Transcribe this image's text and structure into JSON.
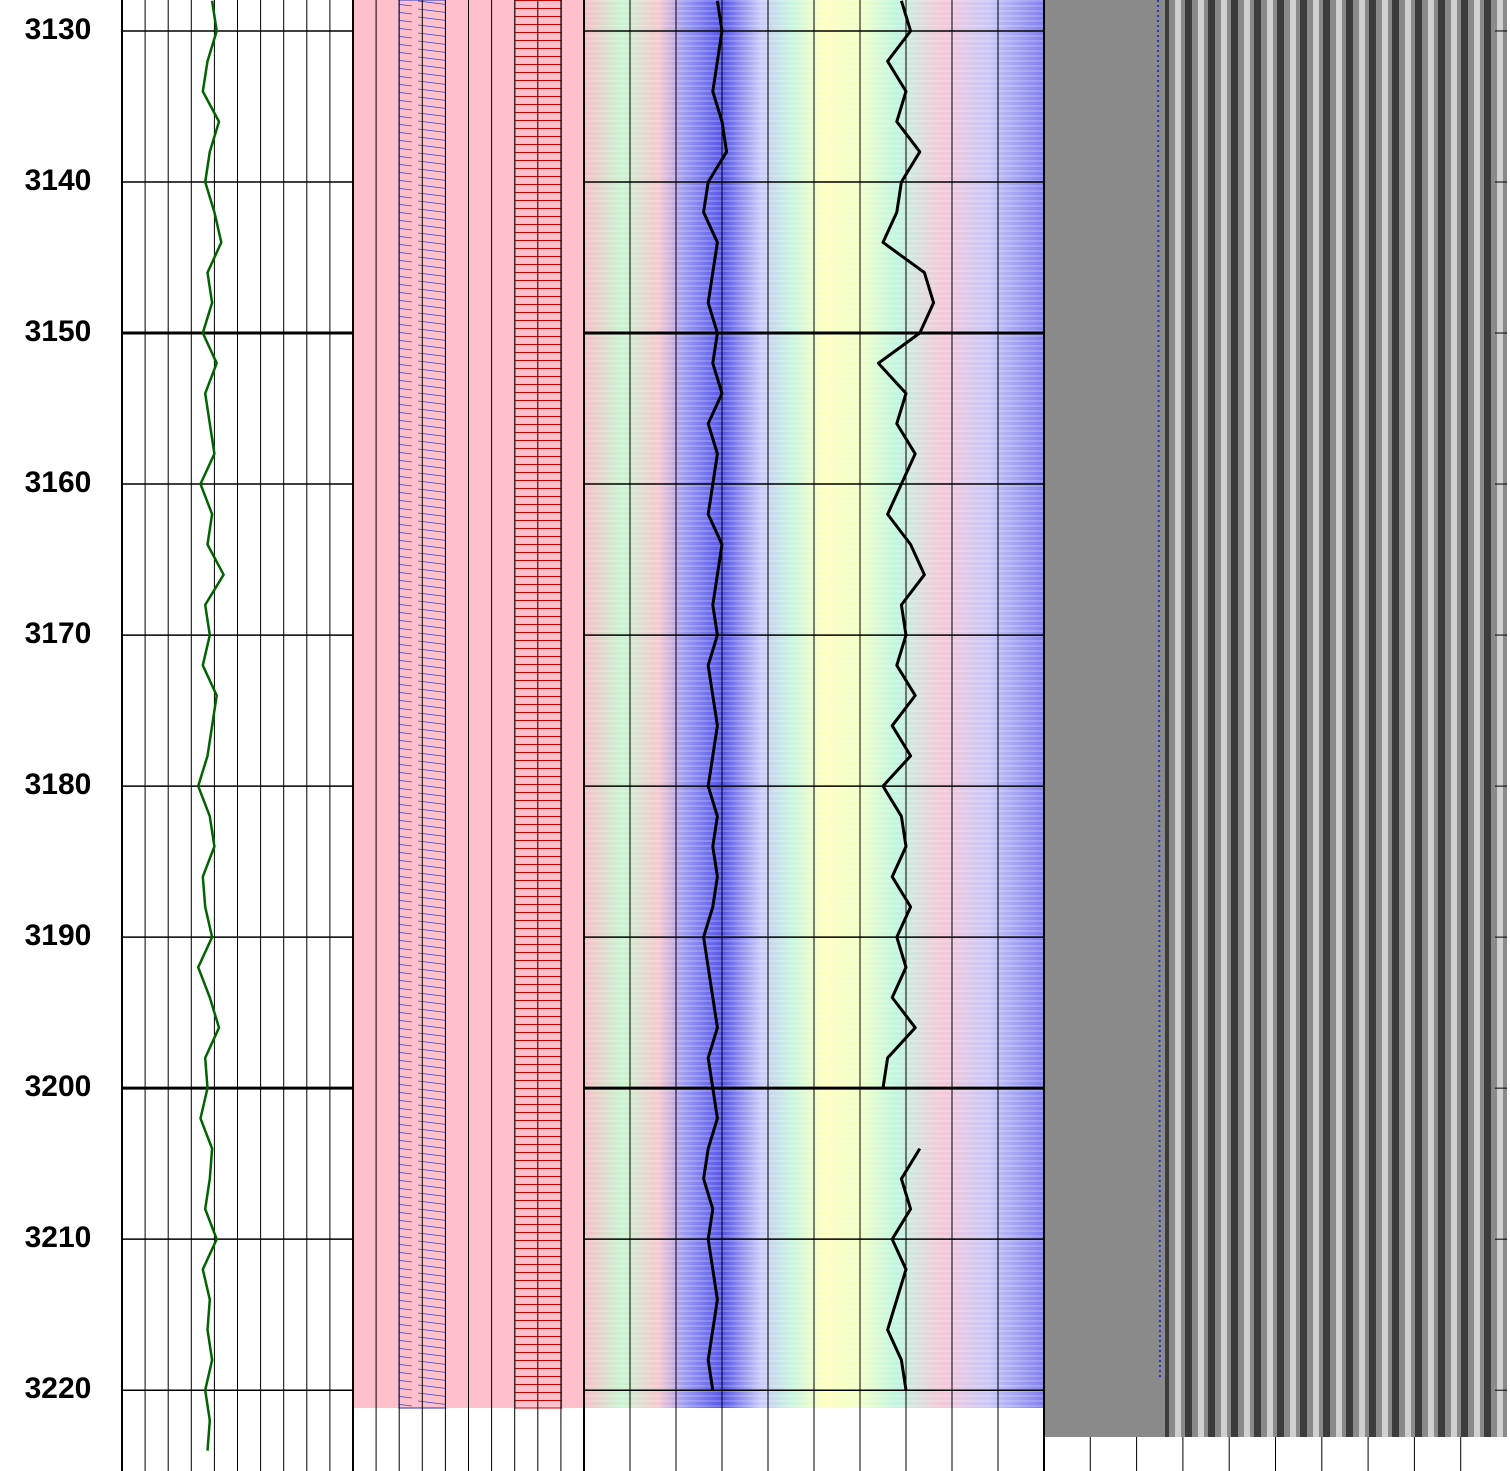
{
  "chart_data": {
    "type": "log",
    "ylim": [
      3127.95,
      3225.35
    ],
    "yticks": [
      3130,
      3140,
      3150,
      3160,
      3170,
      3180,
      3190,
      3200,
      3210,
      3220
    ],
    "grid": true,
    "depth": [
      3128,
      3130,
      3132,
      3134,
      3136,
      3138,
      3140,
      3142,
      3144,
      3146,
      3148,
      3150,
      3152,
      3154,
      3156,
      3158,
      3160,
      3162,
      3164,
      3166,
      3168,
      3170,
      3172,
      3174,
      3176,
      3178,
      3180,
      3182,
      3184,
      3186,
      3188,
      3190,
      3192,
      3194,
      3196,
      3198,
      3200,
      3202,
      3204,
      3206,
      3208,
      3210,
      3212,
      3214,
      3216,
      3218,
      3220,
      3222,
      3224
    ],
    "tracks": [
      {
        "xlim": [
          0,
          10
        ],
        "series": [
          {
            "color": "#006400",
            "values": [
              3.9,
              4.1,
              3.7,
              3.5,
              4.2,
              3.8,
              3.6,
              4.0,
              4.3,
              3.7,
              3.9,
              3.5,
              4.1,
              3.6,
              3.8,
              4.0,
              3.4,
              3.9,
              3.7,
              4.4,
              3.6,
              3.8,
              3.5,
              4.1,
              3.9,
              3.7,
              3.3,
              3.8,
              4.0,
              3.5,
              3.6,
              3.9,
              3.3,
              3.8,
              4.2,
              3.6,
              3.7,
              3.4,
              3.9,
              3.8,
              3.6,
              4.1,
              3.5,
              3.8,
              3.7,
              3.9,
              3.6,
              3.8,
              3.7
            ]
          }
        ]
      },
      {
        "xlim": [
          0,
          10
        ],
        "series": [
          {
            "color": "#000000",
            "values": [
              2.9,
              3.0,
              2.9,
              2.8,
              3.0,
              3.1,
              2.7,
              2.6,
              2.9,
              2.8,
              2.7,
              2.9,
              2.8,
              3.0,
              2.7,
              2.9,
              2.8,
              2.7,
              3.0,
              2.9,
              2.8,
              2.9,
              2.7,
              2.8,
              2.9,
              2.8,
              2.7,
              2.9,
              2.8,
              2.9,
              2.8,
              2.6,
              2.7,
              2.8,
              2.9,
              2.7,
              2.8,
              2.9,
              2.7,
              2.6,
              2.8,
              2.7,
              2.8,
              2.9,
              2.8,
              2.7,
              2.8,
              null,
              null
            ]
          },
          {
            "color": "#000000",
            "values": [
              6.9,
              7.1,
              6.6,
              7.0,
              6.8,
              7.3,
              6.9,
              6.8,
              6.5,
              7.4,
              7.6,
              7.3,
              6.4,
              7.0,
              6.8,
              7.2,
              6.9,
              6.6,
              7.1,
              7.4,
              6.9,
              7.0,
              6.8,
              7.2,
              6.7,
              7.1,
              6.5,
              6.9,
              7.0,
              6.7,
              7.1,
              6.8,
              7.0,
              6.7,
              7.2,
              6.6,
              6.5,
              null,
              7.3,
              6.9,
              7.1,
              6.7,
              7.0,
              6.8,
              6.6,
              6.9,
              7.0,
              null,
              null
            ]
          }
        ]
      }
    ]
  }
}
